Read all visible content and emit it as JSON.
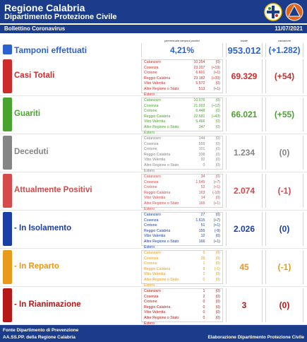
{
  "header": {
    "title": "Regione Calabria",
    "subtitle": "Dipartimento Protezione Civile"
  },
  "subheader": {
    "left": "Bollettino Coronavirus",
    "date": "11/07/2021"
  },
  "columns": {
    "perc": "percentuale tamponi positivi",
    "total": "totale",
    "variation": "variazione"
  },
  "tamponi": {
    "label": "Tamponi effettuati",
    "percent": "4,21%",
    "total": "953.012",
    "variation": "(+1.282)",
    "color": "#2c62cf"
  },
  "sections": [
    {
      "label": "Casi Totali",
      "color": "#cc2c2c",
      "total": "69.329",
      "variation": "(+54)",
      "rows": [
        [
          "Catanzaro",
          "10.254",
          "(0)"
        ],
        [
          "Cosenza",
          "23.207",
          "(+19)"
        ],
        [
          "Crotone",
          "6.601",
          "(+1)"
        ],
        [
          "Reggio Calabria",
          "23.182",
          "(+33)"
        ],
        [
          "Vibo Valentia",
          "5.572",
          "(0)"
        ],
        [
          "Altre Regione o Stato Estero",
          "513",
          "(+1)"
        ]
      ]
    },
    {
      "label": "Guariti",
      "color": "#4aa32e",
      "total": "66.021",
      "variation": "(+55)",
      "rows": [
        [
          "Catanzaro",
          "10.076",
          "(0)"
        ],
        [
          "Cosenza",
          "21.003",
          "(+12)"
        ],
        [
          "Crotone",
          "6.448",
          "(0)"
        ],
        [
          "Reggio Calabria",
          "22.681",
          "(+43)"
        ],
        [
          "Vibo Valentia",
          "5.466",
          "(0)"
        ],
        [
          "Altre Regione o Stato Estero",
          "347",
          "(0)"
        ]
      ]
    },
    {
      "label": "Deceduti",
      "color": "#858585",
      "total": "1.234",
      "variation": "(0)",
      "rows": [
        [
          "Catanzaro",
          "144",
          "(0)"
        ],
        [
          "Cosenza",
          "559",
          "(0)"
        ],
        [
          "Crotone",
          "101",
          "(0)"
        ],
        [
          "Reggio Calabria",
          "338",
          "(0)"
        ],
        [
          "Vibo Valentia",
          "92",
          "(0)"
        ],
        [
          "Altre Regione o Stato Estero",
          "0",
          "(0)"
        ]
      ]
    },
    {
      "label": "Attualmente Positivi",
      "color": "#d54a4a",
      "total": "2.074",
      "variation": "(-1)",
      "rows": [
        [
          "Catanzaro",
          "34",
          "(0)"
        ],
        [
          "Cosenza",
          "1.645",
          "(+7)"
        ],
        [
          "Crotone",
          "52",
          "(+1)"
        ],
        [
          "Reggio Calabria",
          "163",
          "(-10)"
        ],
        [
          "Vibo Valentia",
          "14",
          "(0)"
        ],
        [
          "Altre Regione o Stato Estero",
          "166",
          "(+1)"
        ]
      ]
    },
    {
      "label": "- In Isolamento",
      "color": "#1b3fa6",
      "total": "2.026",
      "variation": "(0)",
      "rows": [
        [
          "Catanzaro",
          "27",
          "(0)"
        ],
        [
          "Cosenza",
          "1.615",
          "(+7)"
        ],
        [
          "Crotone",
          "51",
          "(+1)"
        ],
        [
          "Reggio Calabria",
          "155",
          "(-9)"
        ],
        [
          "Vibo Valentia",
          "12",
          "(0)"
        ],
        [
          "Altre Regione o Stato Estero",
          "166",
          "(+1)"
        ]
      ]
    },
    {
      "label": "- In Reparto",
      "color": "#e89a1b",
      "total": "45",
      "variation": "(-1)",
      "rows": [
        [
          "Catanzaro",
          "6",
          "(0)"
        ],
        [
          "Cosenza",
          "28",
          "(0)"
        ],
        [
          "Crotone",
          "1",
          "(0)"
        ],
        [
          "Reggio Calabria",
          "8",
          "(-1)"
        ],
        [
          "Vibo Valentia",
          "2",
          "(0)"
        ],
        [
          "Altre Regione o Stato Estero",
          "0",
          "(0)"
        ]
      ]
    },
    {
      "label": "- In Rianimazione",
      "color": "#b61818",
      "total": "3",
      "variation": "(0)",
      "rows": [
        [
          "Catanzaro",
          "1",
          "(0)"
        ],
        [
          "Cosenza",
          "2",
          "(0)"
        ],
        [
          "Crotone",
          "0",
          "(0)"
        ],
        [
          "Reggio Calabria",
          "0",
          "(0)"
        ],
        [
          "Vibo Valentia",
          "0",
          "(0)"
        ],
        [
          "Altre Regione o Stato Estero",
          "0",
          "(0)"
        ]
      ]
    }
  ],
  "footer": {
    "line1": "Fonte Dipartimento di Prevenzione",
    "line2": "AA.SS.PP. della Regione Calabria",
    "right": "Elaborazione Dipartimento Protezione Civile"
  }
}
